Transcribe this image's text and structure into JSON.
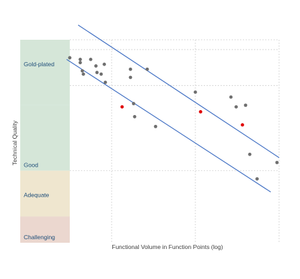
{
  "chart_data": {
    "type": "scatter",
    "xlabel": "Functional Volume in Function Points (log)",
    "ylabel": "Technical Quality",
    "x_scale": "log",
    "bands": [
      {
        "label": "Gold-plated",
        "color": "#d5e6d8"
      },
      {
        "label": "Good",
        "color": "#d5e6d8"
      },
      {
        "label": "Adequate",
        "color": "#efe6cf"
      },
      {
        "label": "Challenging",
        "color": "#ebd7cf"
      }
    ],
    "band_edges": [
      4,
      2,
      0,
      -1.4,
      -2.2
    ],
    "ylim": [
      -2.2,
      4
    ],
    "xlim": [
      1,
      3
    ],
    "x_gridlines": [
      1.4,
      2.2,
      3
    ],
    "y_gridlines": [
      3.7,
      2.6,
      0
    ],
    "grid": "dashed",
    "trend_lines": [
      {
        "points": [
          [
            1.08,
            4.45
          ],
          [
            3.0,
            0.4
          ]
        ]
      },
      {
        "points": [
          [
            0.97,
            3.4
          ],
          [
            2.92,
            -0.65
          ]
        ]
      }
    ],
    "point_color": "#6f6f6f",
    "highlight_color": "#e00000",
    "points": [
      {
        "x": 1.0,
        "y": 3.45
      },
      {
        "x": 1.1,
        "y": 3.4
      },
      {
        "x": 1.1,
        "y": 3.3
      },
      {
        "x": 1.12,
        "y": 3.05
      },
      {
        "x": 1.13,
        "y": 2.95
      },
      {
        "x": 1.2,
        "y": 3.4
      },
      {
        "x": 1.25,
        "y": 3.2
      },
      {
        "x": 1.26,
        "y": 3.0
      },
      {
        "x": 1.3,
        "y": 2.95
      },
      {
        "x": 1.33,
        "y": 3.25
      },
      {
        "x": 1.34,
        "y": 2.7
      },
      {
        "x": 1.58,
        "y": 3.1
      },
      {
        "x": 1.58,
        "y": 2.85
      },
      {
        "x": 1.61,
        "y": 2.05
      },
      {
        "x": 1.62,
        "y": 1.65
      },
      {
        "x": 1.74,
        "y": 3.1
      },
      {
        "x": 1.82,
        "y": 1.35
      },
      {
        "x": 2.2,
        "y": 2.4
      },
      {
        "x": 2.54,
        "y": 2.25
      },
      {
        "x": 2.59,
        "y": 1.95
      },
      {
        "x": 2.68,
        "y": 2.0
      },
      {
        "x": 2.72,
        "y": 0.5
      },
      {
        "x": 2.79,
        "y": -0.25
      },
      {
        "x": 2.98,
        "y": 0.25
      },
      {
        "x": 1.5,
        "y": 1.95,
        "highlight": true
      },
      {
        "x": 2.25,
        "y": 1.8,
        "highlight": true
      },
      {
        "x": 2.65,
        "y": 1.4,
        "highlight": true
      }
    ]
  }
}
